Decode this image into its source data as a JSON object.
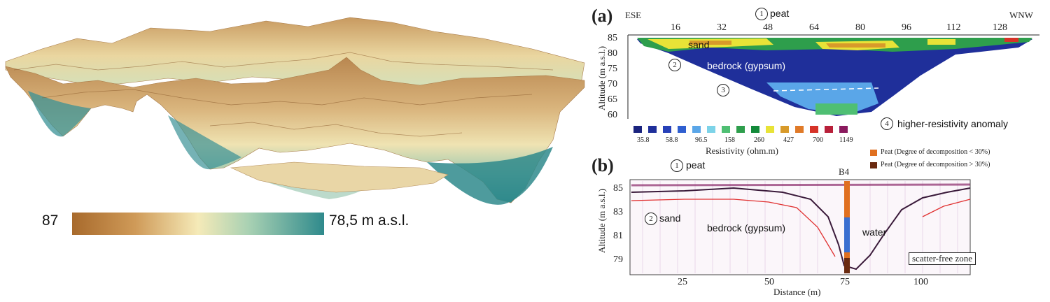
{
  "left_panel": {
    "color_scale": {
      "max_label": "87",
      "min_label": "78,5 m a.s.l."
    }
  },
  "panel_a": {
    "label": "(a)",
    "direction_left": "ESE",
    "direction_right": "WNW",
    "top_ticks": [
      "16",
      "32",
      "48",
      "64",
      "80",
      "96",
      "112",
      "128"
    ],
    "y_axis_label": "Altitude (m a.s.l.)",
    "y_ticks": [
      "85",
      "80",
      "75",
      "70",
      "65",
      "60"
    ],
    "annotations": {
      "peat": "peat",
      "sand": "sand",
      "bedrock": "bedrock (gypsum)",
      "anomaly": "higher-resistivity anomaly",
      "n1": "1",
      "n2": "2",
      "n3": "3",
      "n4": "4"
    },
    "colorbar": {
      "colors": [
        "#1a237e",
        "#1f2f9a",
        "#2740b8",
        "#2f5fd0",
        "#5aa6e8",
        "#7dd3e8",
        "#4fbf73",
        "#2e9e4c",
        "#138a3a",
        "#e8e337",
        "#d89a2a",
        "#e07a28",
        "#d63328",
        "#b8203a",
        "#8a1a5e"
      ],
      "labels": [
        "35.8",
        "58.8",
        "96.5",
        "158",
        "260",
        "427",
        "700",
        "1149"
      ],
      "title": "Resistivity (ohm.m)"
    }
  },
  "panel_b": {
    "label": "(b)",
    "borehole": "B4",
    "y_axis_label": "Altitude (m a.s.l.)",
    "y_ticks": [
      "85",
      "83",
      "81",
      "79"
    ],
    "x_ticks": [
      "25",
      "50",
      "75",
      "100"
    ],
    "x_axis_label": "Distance (m)",
    "annotations": {
      "peat": "peat",
      "sand": "sand",
      "bedrock": "bedrock (gypsum)",
      "water": "water",
      "scatter_free": "scatter-free zone",
      "n1": "1",
      "n2": "2"
    },
    "legend": [
      {
        "label": "Peat (Degree of decomposition < 30%)",
        "color": "#e07020"
      },
      {
        "label": "Peat (Degree of decomposition > 30%)",
        "color": "#6a2a10"
      }
    ]
  }
}
